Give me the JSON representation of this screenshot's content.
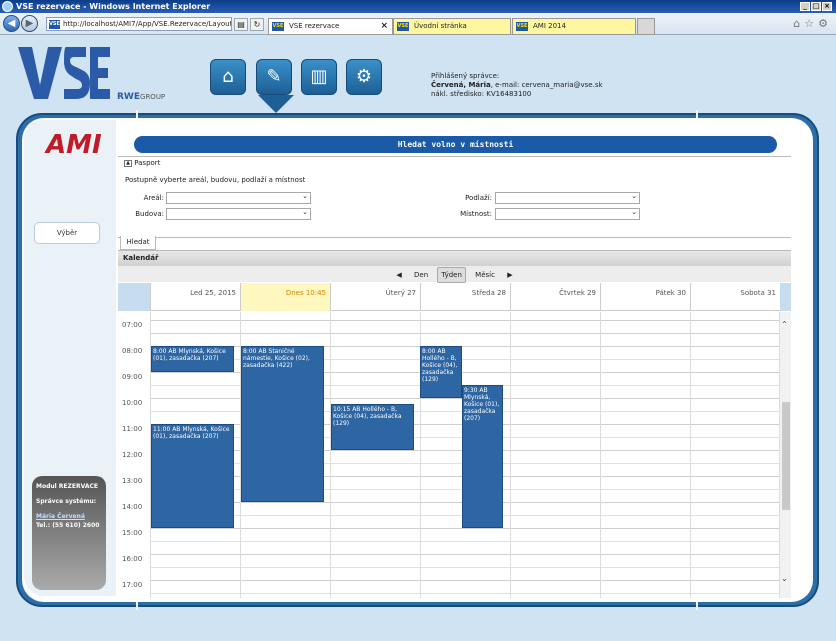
{
  "window": {
    "title": "VSE rezervace - Windows Internet Explorer"
  },
  "browser": {
    "address": "http://localhost/AMI7/App/VSE.Rezervace/Layout/",
    "address_host": "localhost",
    "tabs": [
      {
        "label": "VSE rezervace"
      },
      {
        "label": "Úvodní stránka"
      },
      {
        "label": "AMI 2014"
      }
    ]
  },
  "header": {
    "rwe": "RWE",
    "group": "GROUP",
    "user_label": "Přihlášený správce:",
    "user_name": "Červená, Mária",
    "user_email": ", e-mail: cervena_maria@vse.sk",
    "user_center": "nákl. středisko: KV16483100"
  },
  "sidebar": {
    "logo": "AMI",
    "vyber": "Výběr",
    "modul_title": "Modul REZERVACE",
    "admin_label": "Správce systému:",
    "admin_name": "Mária Červená",
    "admin_phone": "Tel.: (55 610) 2600"
  },
  "main": {
    "title": "Hledat volno v místnosti",
    "pasport": "Pasport",
    "hint": "Postupně vyberte areál, budovu, podlaží a místnost",
    "fields": {
      "areal": "Areál:",
      "budova": "Budova:",
      "podlazi": "Podlaží:",
      "mistnost": "Místnost:"
    },
    "hledat_tab": "Hledat",
    "kalendar": "Kalendář",
    "views": {
      "prev": "◀",
      "day": "Den",
      "week": "Týden",
      "month": "Měsíc",
      "next": "▶"
    }
  },
  "calendar": {
    "days": [
      "Led 25, 2015",
      "Dnes 10:45",
      "Úterý 27",
      "Středa 28",
      "Čtvrtek 29",
      "Pátek 30",
      "Sobota 31"
    ],
    "hours": [
      "07:00",
      "08:00",
      "09:00",
      "10:00",
      "11:00",
      "12:00",
      "13:00",
      "14:00",
      "15:00",
      "16:00",
      "17:00"
    ],
    "events": [
      {
        "text": "8:00 AB Mlynská, Košice (01), zasadačka (207)"
      },
      {
        "text": "11:00 AB Mlynská, Košice (01), zasadačka (207)"
      },
      {
        "text": "8:00 AB Staničné námestie, Košice (02), zasadačka (422)"
      },
      {
        "text": "10:15 AB Hollého - B, Košice (04), zasadačka (129)"
      },
      {
        "text": "8:00 AB Hollého - B, Košice (04), zasadačka (129)"
      },
      {
        "text": "9:30 AB Mlynská, Košice (01), zasadačka (207)"
      }
    ]
  },
  "colors": {
    "brand_blue": "#1a5aa6",
    "event_blue": "#2d66a3",
    "today_yellow": "#fff7c0",
    "ami_red": "#c01b28"
  }
}
